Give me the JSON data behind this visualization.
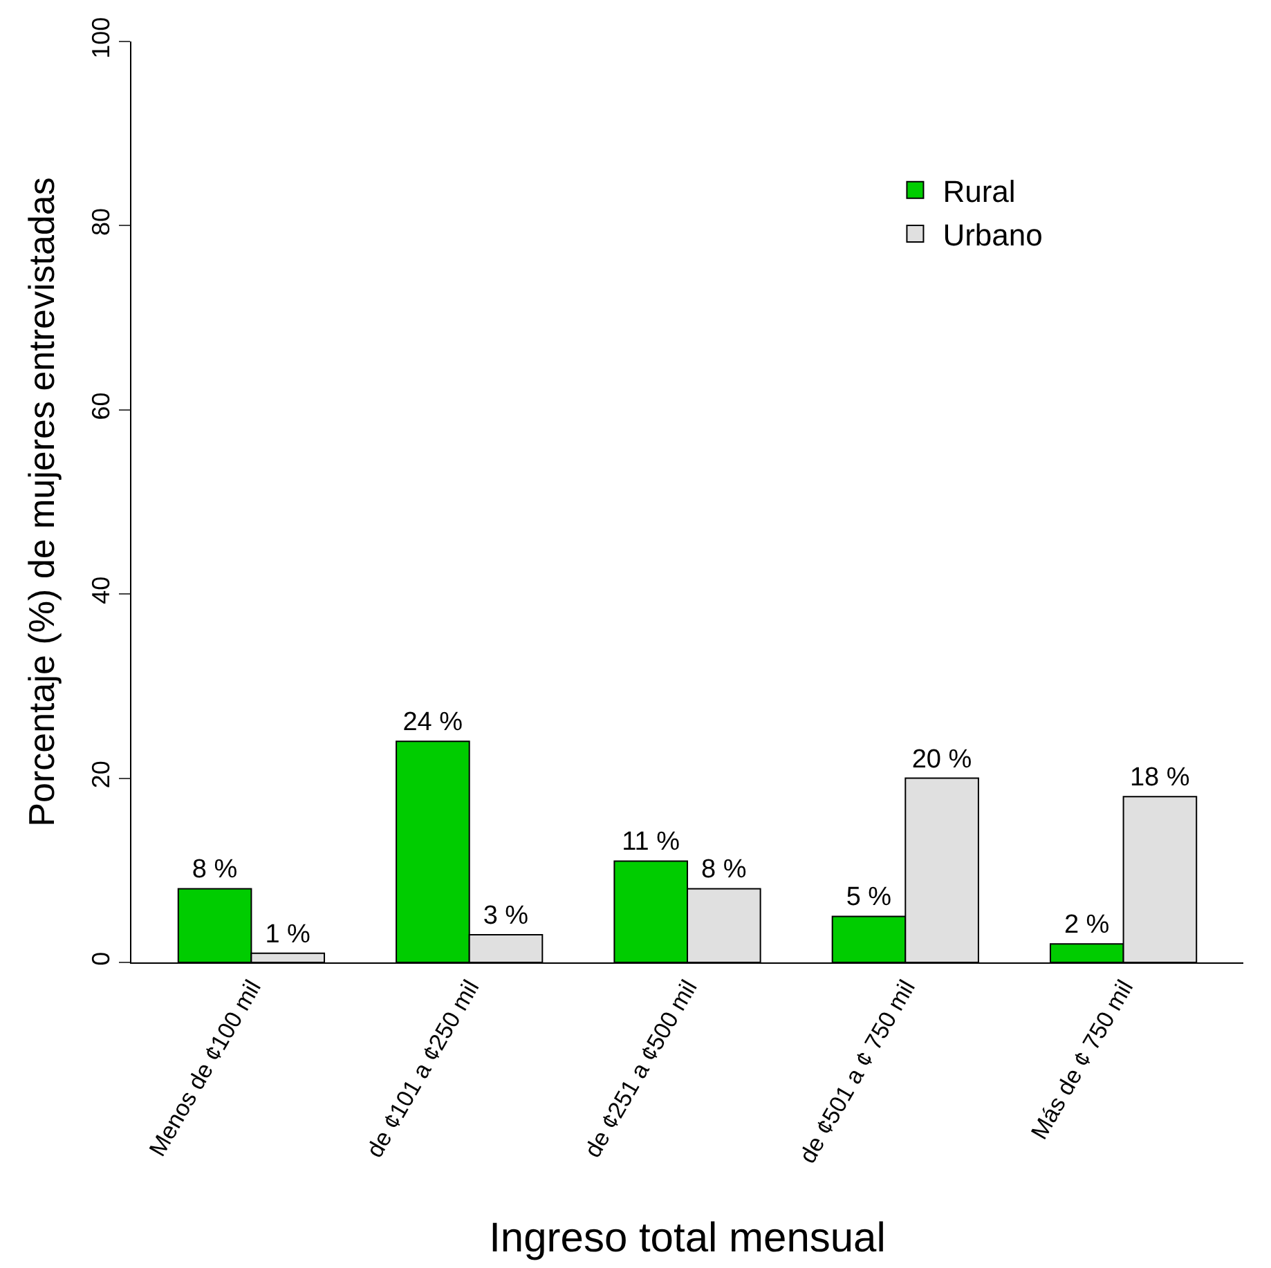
{
  "chart_data": {
    "type": "bar",
    "xlabel": "Ingreso total mensual",
    "ylabel": "Porcentaje (%) de mujeres entrevistadas",
    "categories": [
      "Menos de ¢100 mil",
      "de ¢101 a ¢250 mil",
      "de ¢251 a ¢500 mil",
      "de ¢501 a ¢ 750 mil",
      "Más de ¢ 750 mil"
    ],
    "series": [
      {
        "name": "Rural",
        "color": "#00cc00",
        "values": [
          8,
          24,
          11,
          5,
          2
        ],
        "value_labels": [
          "8 %",
          "24 %",
          "11 %",
          "5 %",
          "2 %"
        ]
      },
      {
        "name": "Urbano",
        "color": "#e0e0e0",
        "values": [
          1,
          3,
          8,
          20,
          18
        ],
        "value_labels": [
          "1 %",
          "3 %",
          "8 %",
          "20 %",
          "18 %"
        ]
      }
    ],
    "ylim": [
      0,
      100
    ],
    "yticks": [
      0,
      20,
      40,
      60,
      80,
      100
    ],
    "legend": "top right"
  }
}
